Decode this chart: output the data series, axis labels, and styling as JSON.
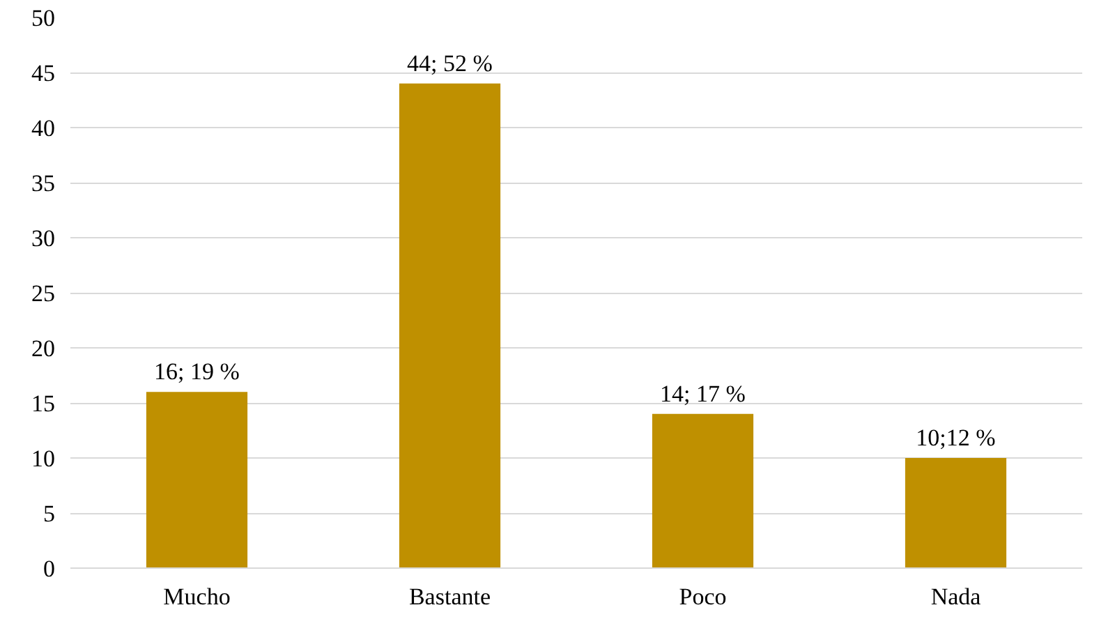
{
  "chart_data": {
    "type": "bar",
    "categories": [
      "Mucho",
      "Bastante",
      "Poco",
      "Nada"
    ],
    "values": [
      16,
      44,
      14,
      10
    ],
    "value_labels": [
      "16; 19 %",
      "44; 52 %",
      "14; 17 %",
      "10;12 %"
    ],
    "color": "#bf9000",
    "ylim": [
      0,
      50
    ],
    "yticks": [
      0,
      5,
      10,
      15,
      20,
      25,
      30,
      35,
      40,
      45,
      50
    ],
    "grid": "y"
  }
}
